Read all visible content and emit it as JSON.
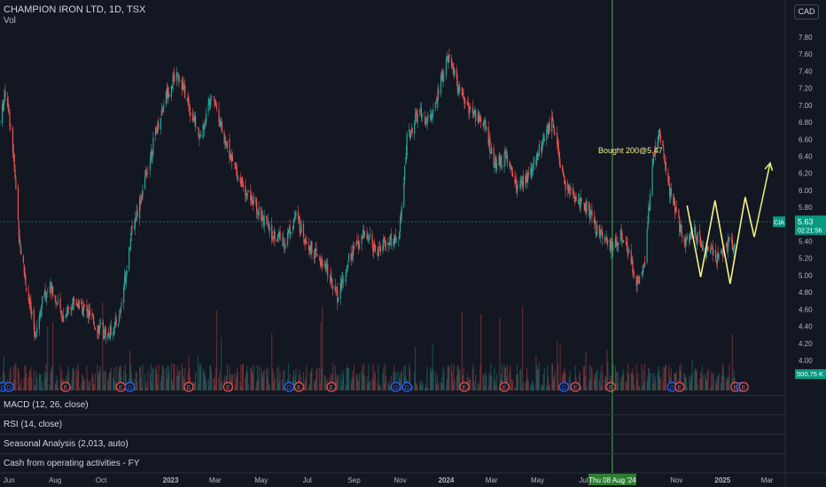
{
  "header": {
    "title": "CHAMPION IRON LTD, 1D, TSX",
    "volume_label": "Vol",
    "currency_button": "CAD"
  },
  "chart_data": {
    "type": "candlestick",
    "symbol": "CIA",
    "ylim": [
      3.85,
      7.9
    ],
    "y_ticks": [
      "7.80",
      "7.60",
      "7.40",
      "7.20",
      "7.00",
      "6.80",
      "6.60",
      "6.40",
      "6.20",
      "6.00",
      "5.80",
      "5.60",
      "5.40",
      "5.20",
      "5.00",
      "4.80",
      "4.60",
      "4.40",
      "4.20",
      "4.00"
    ],
    "x_ticks": [
      "Jun",
      "Aug",
      "Oct",
      "2023",
      "Mar",
      "May",
      "Jul",
      "Sep",
      "Nov",
      "2024",
      "Mar",
      "May",
      "Jul",
      "Nov",
      "2025",
      "Mar"
    ],
    "price_path": [
      {
        "x": "2022-05-20",
        "y": 6.8
      },
      {
        "x": "2022-05-28",
        "y": 7.2
      },
      {
        "x": "2022-06-05",
        "y": 6.6
      },
      {
        "x": "2022-06-15",
        "y": 5.4
      },
      {
        "x": "2022-06-25",
        "y": 4.8
      },
      {
        "x": "2022-07-05",
        "y": 4.3
      },
      {
        "x": "2022-07-15",
        "y": 4.7
      },
      {
        "x": "2022-07-25",
        "y": 4.9
      },
      {
        "x": "2022-08-10",
        "y": 4.5
      },
      {
        "x": "2022-08-25",
        "y": 4.7
      },
      {
        "x": "2022-09-10",
        "y": 4.6
      },
      {
        "x": "2022-09-25",
        "y": 4.4
      },
      {
        "x": "2022-10-10",
        "y": 4.3
      },
      {
        "x": "2022-10-25",
        "y": 4.5
      },
      {
        "x": "2022-11-10",
        "y": 5.5
      },
      {
        "x": "2022-11-25",
        "y": 6.0
      },
      {
        "x": "2022-12-10",
        "y": 6.6
      },
      {
        "x": "2022-12-25",
        "y": 7.1
      },
      {
        "x": "2023-01-10",
        "y": 7.4
      },
      {
        "x": "2023-01-25",
        "y": 7.0
      },
      {
        "x": "2023-02-10",
        "y": 6.6
      },
      {
        "x": "2023-02-25",
        "y": 7.2
      },
      {
        "x": "2023-03-10",
        "y": 6.7
      },
      {
        "x": "2023-03-25",
        "y": 6.3
      },
      {
        "x": "2023-04-10",
        "y": 6.0
      },
      {
        "x": "2023-04-25",
        "y": 5.8
      },
      {
        "x": "2023-05-15",
        "y": 5.5
      },
      {
        "x": "2023-06-01",
        "y": 5.4
      },
      {
        "x": "2023-06-15",
        "y": 5.7
      },
      {
        "x": "2023-07-01",
        "y": 5.4
      },
      {
        "x": "2023-07-15",
        "y": 5.2
      },
      {
        "x": "2023-08-01",
        "y": 5.0
      },
      {
        "x": "2023-08-10",
        "y": 4.75
      },
      {
        "x": "2023-08-25",
        "y": 5.2
      },
      {
        "x": "2023-09-15",
        "y": 5.5
      },
      {
        "x": "2023-10-01",
        "y": 5.3
      },
      {
        "x": "2023-10-15",
        "y": 5.4
      },
      {
        "x": "2023-10-30",
        "y": 5.4
      },
      {
        "x": "2023-11-10",
        "y": 6.6
      },
      {
        "x": "2023-11-25",
        "y": 6.9
      },
      {
        "x": "2023-12-10",
        "y": 6.8
      },
      {
        "x": "2023-12-25",
        "y": 7.3
      },
      {
        "x": "2024-01-05",
        "y": 7.6
      },
      {
        "x": "2024-01-20",
        "y": 7.1
      },
      {
        "x": "2024-02-05",
        "y": 6.9
      },
      {
        "x": "2024-02-20",
        "y": 6.8
      },
      {
        "x": "2024-03-05",
        "y": 6.3
      },
      {
        "x": "2024-03-20",
        "y": 6.4
      },
      {
        "x": "2024-04-05",
        "y": 6.0
      },
      {
        "x": "2024-04-20",
        "y": 6.2
      },
      {
        "x": "2024-05-05",
        "y": 6.5
      },
      {
        "x": "2024-05-20",
        "y": 6.8
      },
      {
        "x": "2024-06-05",
        "y": 6.1
      },
      {
        "x": "2024-06-20",
        "y": 5.9
      },
      {
        "x": "2024-07-05",
        "y": 5.8
      },
      {
        "x": "2024-07-20",
        "y": 5.5
      },
      {
        "x": "2024-08-08",
        "y": 5.3
      },
      {
        "x": "2024-08-20",
        "y": 5.5
      },
      {
        "x": "2024-09-01",
        "y": 5.2
      },
      {
        "x": "2024-09-10",
        "y": 4.9
      },
      {
        "x": "2024-09-20",
        "y": 5.2
      },
      {
        "x": "2024-10-01",
        "y": 6.4
      },
      {
        "x": "2024-10-10",
        "y": 6.7
      },
      {
        "x": "2024-10-20",
        "y": 6.1
      },
      {
        "x": "2024-11-01",
        "y": 5.7
      },
      {
        "x": "2024-11-10",
        "y": 5.4
      },
      {
        "x": "2024-11-25",
        "y": 5.5
      },
      {
        "x": "2024-12-10",
        "y": 5.3
      },
      {
        "x": "2024-12-25",
        "y": 5.2
      },
      {
        "x": "2025-01-10",
        "y": 5.4
      },
      {
        "x": "2025-01-18",
        "y": 5.35
      }
    ],
    "last_price": {
      "symbol": "CIA",
      "value": "5.63",
      "countdown": "02:21:56"
    },
    "volume_value": "500.75 K",
    "annotations": {
      "buy_text": "Bought  200@5.47",
      "vertical_line_date_label": "Thu 08 Aug '24"
    },
    "projection_w": [
      {
        "x": "2024-11-15",
        "y": 5.82
      },
      {
        "x": "2024-12-03",
        "y": 4.98
      },
      {
        "x": "2024-12-22",
        "y": 5.88
      },
      {
        "x": "2025-01-11",
        "y": 4.9
      },
      {
        "x": "2025-01-31",
        "y": 5.92
      },
      {
        "x": "2025-02-12",
        "y": 5.45
      },
      {
        "x": "2025-03-05",
        "y": 6.32
      }
    ],
    "event_markers": [
      "D",
      "D",
      "E",
      "E",
      "D",
      "E",
      "E",
      "D",
      "E",
      "E",
      "D",
      "D",
      "E",
      "E",
      "D",
      "E",
      "E",
      "D",
      "E",
      "E",
      "D",
      "E"
    ],
    "colors": {
      "up": "#26a69a",
      "down": "#ef5350",
      "price_badge": "#089981",
      "vertical_line": "#4caf50",
      "date_badge": "#2e7d32",
      "w_pattern": "#f7f08a",
      "projection_arrow": "#dce775",
      "annotation_text": "#f7f08a"
    }
  },
  "indicators": [
    {
      "label": "MACD (12, 26, close)"
    },
    {
      "label": "RSI (14, close)"
    },
    {
      "label": "Seasonal Analysis (2,013, auto)"
    },
    {
      "label": "Cash from operating activities - FY"
    }
  ]
}
